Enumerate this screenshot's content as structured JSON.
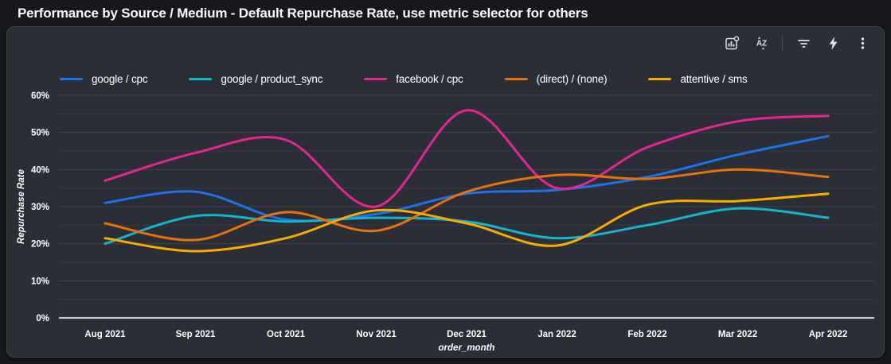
{
  "header": {
    "title": "Performance by Source / Medium - Default Repurchase Rate, use metric selector for others"
  },
  "toolbar": {
    "icons": [
      "chart-explore",
      "sort-az",
      "filter",
      "lightning",
      "kebab-menu"
    ]
  },
  "colors": {
    "outer_bg": "#17181d",
    "panel_bg": "#2b2e37",
    "panel_border": "#3d414b",
    "grid_major": "#3f434d",
    "grid_minor": "#373b44",
    "zero_line": "#ffffff",
    "axis_text": "#ffffff",
    "icon": "#dfe2e8"
  },
  "chart_data": {
    "type": "line",
    "title": "Performance by Source / Medium - Default Repurchase Rate, use metric selector for others",
    "xlabel": "order_month",
    "ylabel": "Repurchase Rate",
    "ylim": [
      0,
      60
    ],
    "y_tick_step": 10,
    "y_minor_step": 5,
    "y_ticks": [
      "0%",
      "10%",
      "20%",
      "30%",
      "40%",
      "50%",
      "60%"
    ],
    "grid": true,
    "legend_position": "top",
    "categories": [
      "Aug 2021",
      "Sep 2021",
      "Oct 2021",
      "Nov 2021",
      "Dec 2021",
      "Jan 2022",
      "Feb 2022",
      "Mar 2022",
      "Apr 2022"
    ],
    "series": [
      {
        "name": "google / cpc",
        "color": "#1a73e8",
        "values": [
          31,
          34,
          26.5,
          28,
          33.5,
          34.5,
          38,
          44,
          49
        ]
      },
      {
        "name": "google / product_sync",
        "color": "#12b5cb",
        "values": [
          20,
          27.5,
          26,
          27,
          26,
          21.5,
          25,
          29.5,
          27
        ]
      },
      {
        "name": "facebook / cpc",
        "color": "#e52592",
        "values": [
          37,
          44.5,
          48,
          30,
          56,
          35,
          46,
          53,
          54.5
        ]
      },
      {
        "name": "(direct) / (none)",
        "color": "#e8710a",
        "values": [
          25.5,
          21,
          28.5,
          23.5,
          34,
          38.5,
          37.5,
          40,
          38
        ]
      },
      {
        "name": "attentive / sms",
        "color": "#f9ab00",
        "values": [
          21.5,
          18,
          21.5,
          29,
          25.5,
          19.5,
          30.5,
          31.5,
          33.5
        ]
      }
    ]
  }
}
